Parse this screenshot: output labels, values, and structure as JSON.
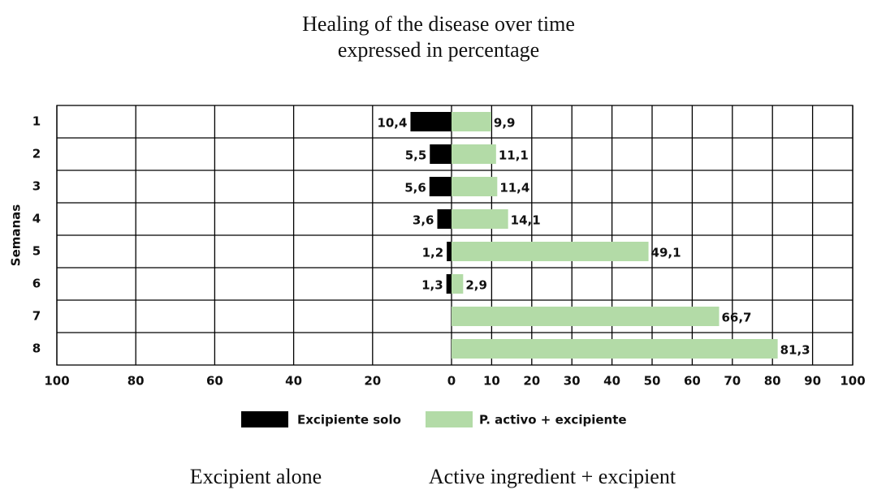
{
  "chart_data": {
    "type": "diverging_bar",
    "title": "Healing of the disease over time",
    "subtitle": "expressed in percentage",
    "ylabel": "Semanas",
    "categories": [
      "1",
      "2",
      "3",
      "4",
      "5",
      "6",
      "7",
      "8"
    ],
    "series": [
      {
        "name": "Excipiente solo",
        "color": "#000000",
        "axis": "left",
        "values": [
          10.4,
          5.5,
          5.6,
          3.6,
          1.2,
          1.3,
          null,
          null
        ],
        "value_labels": [
          "10,4",
          "5,5",
          "5,6",
          "3,6",
          "1,2",
          "1,3",
          null,
          null
        ]
      },
      {
        "name": "P. activo + excipiente",
        "color": "#b3dba7",
        "values": [
          9.9,
          11.1,
          11.4,
          14.1,
          49.1,
          2.9,
          66.7,
          81.3
        ],
        "value_labels": [
          "9,9",
          "11,1",
          "11,4",
          "14,1",
          "49,1",
          "2,9",
          "66,7",
          "81,3"
        ]
      }
    ],
    "left_xlim": [
      0,
      100
    ],
    "left_xticks": [
      100,
      80,
      60,
      40,
      20
    ],
    "xlim": [
      0,
      100
    ],
    "xticks": [
      0,
      10,
      20,
      30,
      40,
      50,
      60,
      70,
      80,
      90,
      100
    ],
    "grid": true,
    "annotations": [
      "Excipient alone",
      "Active ingredient + excipient"
    ]
  }
}
